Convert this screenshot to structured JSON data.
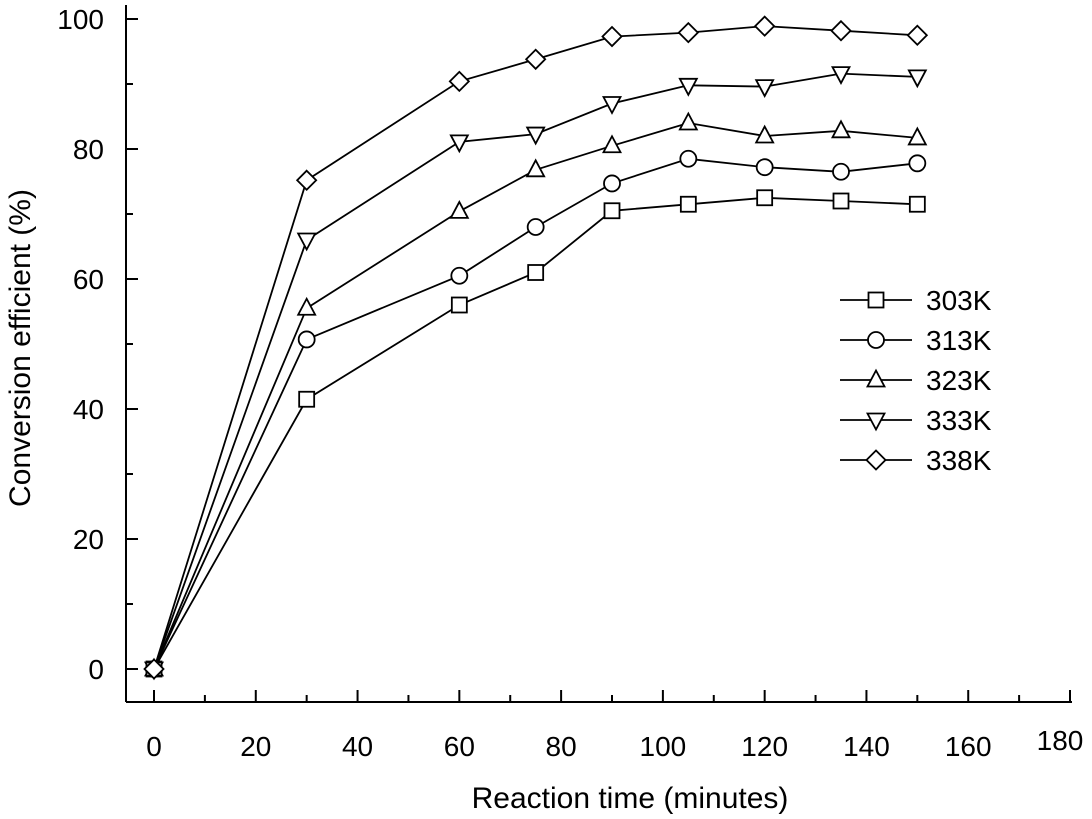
{
  "chart_data": {
    "type": "line",
    "xlabel": "Reaction time (minutes)",
    "ylabel": "Conversion efficient (%)",
    "xlim": [
      0,
      180
    ],
    "ylim": [
      0,
      100
    ],
    "xticks": [
      0,
      20,
      40,
      60,
      80,
      100,
      120,
      140,
      160,
      180
    ],
    "yticks": [
      0,
      20,
      40,
      60,
      80,
      100
    ],
    "grid": false,
    "legend_position": "right",
    "x": [
      0,
      30,
      60,
      75,
      90,
      105,
      120,
      135,
      150
    ],
    "series": [
      {
        "name": "303K",
        "marker": "square",
        "values": [
          0,
          41.5,
          56,
          61,
          70.5,
          71.5,
          72.5,
          72,
          71.5
        ]
      },
      {
        "name": "313K",
        "marker": "circle",
        "values": [
          0,
          50.7,
          60.5,
          68,
          74.7,
          78.5,
          77.2,
          76.5,
          77.8
        ]
      },
      {
        "name": "323K",
        "marker": "triangle-up",
        "values": [
          0,
          55.5,
          70.4,
          76.8,
          80.5,
          84,
          82,
          82.8,
          81.7
        ]
      },
      {
        "name": "333K",
        "marker": "triangle-down",
        "values": [
          0,
          66,
          81.1,
          82.3,
          87,
          89.8,
          89.6,
          91.6,
          91.1
        ]
      },
      {
        "name": "338K",
        "marker": "diamond",
        "values": [
          0,
          75.2,
          90.4,
          93.8,
          97.3,
          97.9,
          98.9,
          98.2,
          97.5
        ]
      }
    ]
  }
}
